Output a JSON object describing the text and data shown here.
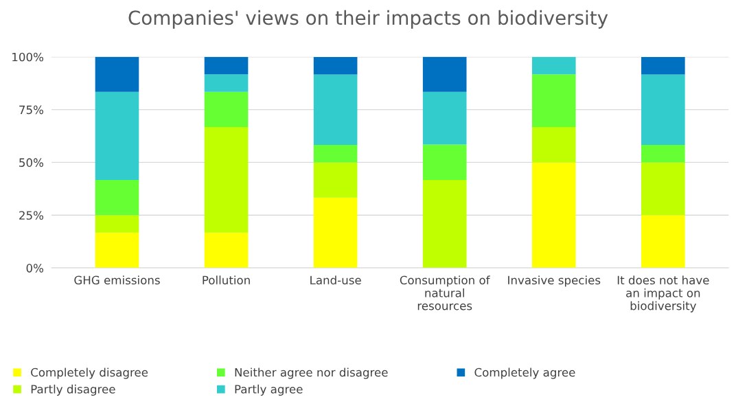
{
  "chart_data": {
    "type": "bar",
    "stacked": true,
    "title": "Companies' views on their impacts on biodiversity",
    "categories": [
      "GHG emissions",
      "Pollution",
      "Land-use",
      "Consumption of\nnatural\nresources",
      "Invasive species",
      "It does not have\nan impact on\nbiodiversity"
    ],
    "series": [
      {
        "name": "Completely disagree",
        "color": "#ffff00",
        "values": [
          16.7,
          16.7,
          33.3,
          0,
          50,
          25
        ]
      },
      {
        "name": "Partly disagree",
        "color": "#c0ff00",
        "values": [
          8.3,
          50,
          16.7,
          41.7,
          16.7,
          25
        ]
      },
      {
        "name": "Neither agree nor disagree",
        "color": "#66ff33",
        "values": [
          16.7,
          16.7,
          8.3,
          16.7,
          25,
          8.3
        ]
      },
      {
        "name": "Partly agree",
        "color": "#33cccc",
        "values": [
          41.7,
          8.3,
          33.3,
          25,
          8.3,
          33.3
        ]
      },
      {
        "name": "Completely agree",
        "color": "#0070c0",
        "values": [
          16.7,
          8.3,
          8.3,
          16.7,
          0,
          8.3
        ]
      }
    ],
    "ylim": [
      0,
      100
    ],
    "yticks": [
      {
        "value": 0,
        "label": "0%"
      },
      {
        "value": 25,
        "label": "25%"
      },
      {
        "value": 50,
        "label": "50%"
      },
      {
        "value": 75,
        "label": "75%"
      },
      {
        "value": 100,
        "label": "100%"
      }
    ],
    "grid": "y",
    "legend": "bottom"
  }
}
